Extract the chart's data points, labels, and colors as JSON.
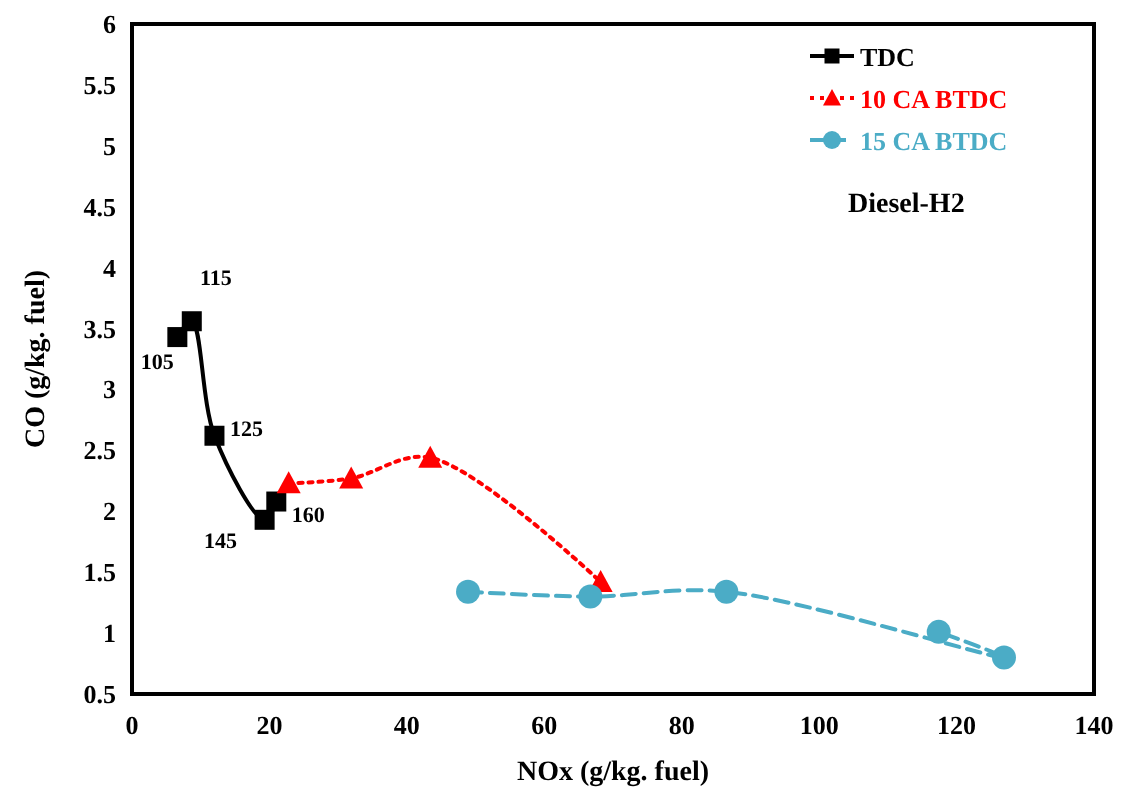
{
  "chart_data": {
    "type": "line",
    "xlabel": "NOx (g/kg. fuel)",
    "ylabel": "CO (g/kg. fuel)",
    "xlim": [
      0,
      140
    ],
    "xticks": [
      0,
      20,
      40,
      60,
      80,
      100,
      120,
      140
    ],
    "ylim": [
      0.5,
      6
    ],
    "yticks": [
      0.5,
      1,
      1.5,
      2,
      2.5,
      3,
      3.5,
      4,
      4.5,
      5,
      5.5,
      6
    ],
    "grid": false,
    "legend": "top right",
    "series": [
      {
        "name": "TDC",
        "color": "#000000",
        "marker": "square",
        "line_style": "solid",
        "x": [
          6.6,
          8.7,
          12.0,
          19.3,
          21.0
        ],
        "values": [
          3.43,
          3.56,
          2.62,
          1.93,
          2.08
        ]
      },
      {
        "name": "10 CA BTDC",
        "color": "#ff0000",
        "marker": "triangle",
        "line_style": "dotted",
        "x": [
          22.8,
          31.9,
          43.4,
          68.2
        ],
        "values": [
          2.23,
          2.27,
          2.44,
          1.42
        ]
      },
      {
        "name": "15 CA BTDC",
        "color": "#4bacc6",
        "marker": "circle",
        "line_style": "dashed",
        "x": [
          48.9,
          66.7,
          86.5,
          126.9,
          117.4
        ],
        "values": [
          1.34,
          1.3,
          1.34,
          0.8,
          1.01
        ]
      }
    ],
    "annotations": [
      {
        "text": "105",
        "x": 6.6,
        "y": 3.43
      },
      {
        "text": "115",
        "x": 8.7,
        "y": 3.56
      },
      {
        "text": "125",
        "x": 12.0,
        "y": 2.62
      },
      {
        "text": "145",
        "x": 19.3,
        "y": 1.93
      },
      {
        "text": "160",
        "x": 21.0,
        "y": 2.08
      },
      "Diesel-H2"
    ]
  }
}
